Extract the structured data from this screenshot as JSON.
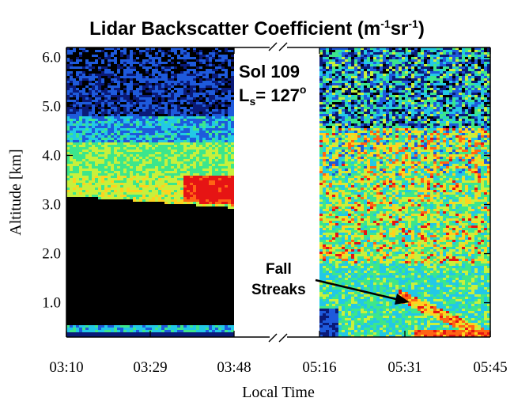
{
  "chart_data": {
    "type": "heatmap",
    "title": {
      "main": "Lidar Backscatter Coefficient (m",
      "sup1": "-1",
      "mid": "sr",
      "sup2": "-1",
      "end": ")"
    },
    "xlabel": "Local Time",
    "ylabel": "Altitude [km]",
    "x_ticks_left": [
      "03:10",
      "03:29",
      "03:48"
    ],
    "x_ticks_right": [
      "05:16",
      "05:31",
      "05:45"
    ],
    "y_ticks": [
      "1.0",
      "2.0",
      "3.0",
      "4.0",
      "5.0",
      "6.0"
    ],
    "y_tick_values": [
      1.0,
      2.0,
      3.0,
      4.0,
      5.0,
      6.0
    ],
    "ylim": [
      0.3,
      6.2
    ],
    "x_axis_break": "//",
    "panels": [
      {
        "name": "early",
        "time_range": [
          "03:10",
          "03:48"
        ],
        "features": [
          {
            "desc": "dense cloud layer (yellow-green)",
            "alt_km": [
              3.0,
              4.2
            ]
          },
          {
            "desc": "peak backscatter (red)",
            "alt_km": [
              3.0,
              3.6
            ],
            "time": [
              "03:37",
              "03:48"
            ]
          },
          {
            "desc": "low signal (black)",
            "alt_km": [
              0.6,
              2.9
            ]
          }
        ]
      },
      {
        "name": "late",
        "time_range": [
          "05:16",
          "05:45"
        ],
        "features": [
          {
            "desc": "noisy upper atmosphere",
            "alt_km": [
              4.5,
              6.2
            ]
          },
          {
            "desc": "scattered red cells",
            "alt_km": [
              2.0,
              4.0
            ]
          },
          {
            "desc": "fall streaks",
            "alt_km": [
              0.4,
              2.0
            ]
          }
        ]
      }
    ],
    "colorscale": [
      "#000000",
      "#0a1a78",
      "#1e5adc",
      "#22c8e6",
      "#3ce68c",
      "#c8f03c",
      "#ffd21e",
      "#ff6414",
      "#e61414"
    ]
  },
  "annotations": {
    "sol": "Sol 109",
    "ls_prefix": "L",
    "ls_sub": "s",
    "ls_value": "= 127",
    "ls_degree": "o",
    "fall_line1": "Fall",
    "fall_line2": "Streaks"
  }
}
